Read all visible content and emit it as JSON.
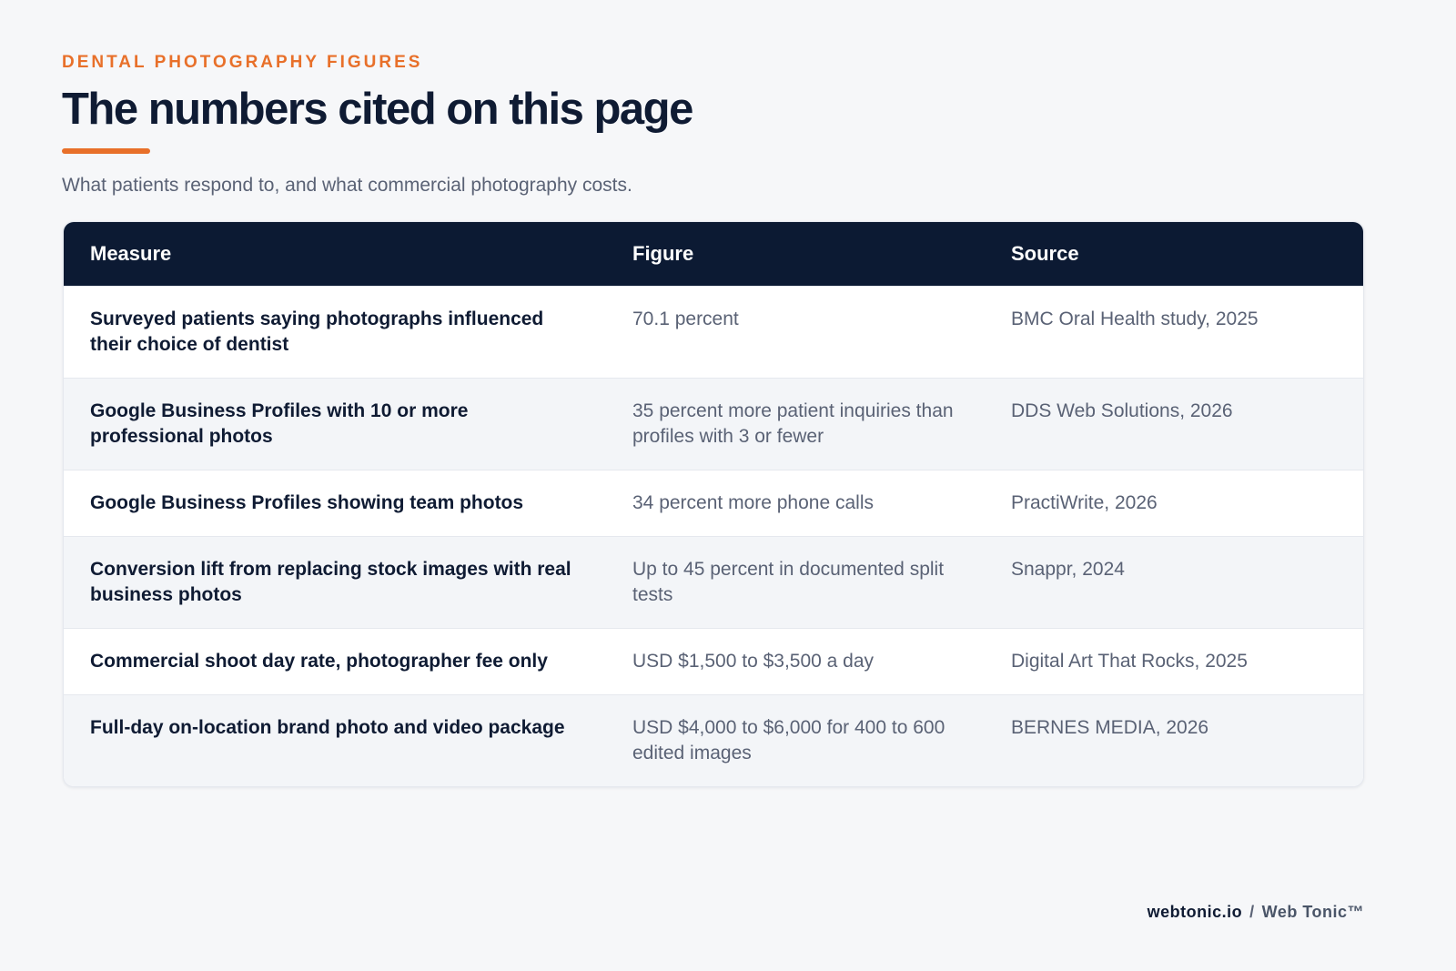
{
  "header": {
    "eyebrow": "DENTAL PHOTOGRAPHY FIGURES",
    "title": "The numbers cited on this page",
    "subtitle": "What patients respond to, and what commercial photography costs."
  },
  "table": {
    "columns": [
      "Measure",
      "Figure",
      "Source"
    ],
    "rows": [
      [
        "Surveyed patients saying photographs influenced their choice of dentist",
        "70.1 percent",
        "BMC Oral Health study, 2025"
      ],
      [
        "Google Business Profiles with 10 or more professional photos",
        "35 percent more patient inquiries than profiles with 3 or fewer",
        "DDS Web Solutions, 2026"
      ],
      [
        "Google Business Profiles showing team photos",
        "34 percent more phone calls",
        "PractiWrite, 2026"
      ],
      [
        "Conversion lift from replacing stock images with real business photos",
        "Up to 45 percent in documented split tests",
        "Snappr, 2024"
      ],
      [
        "Commercial shoot day rate, photographer fee only",
        "USD $1,500 to $3,500 a day",
        "Digital Art That Rocks, 2025"
      ],
      [
        "Full-day on-location brand photo and video package",
        "USD $4,000 to $6,000 for 400 to 600 edited images",
        "BERNES MEDIA, 2026"
      ]
    ]
  },
  "footer": {
    "site": "webtonic.io",
    "separator": "/",
    "brand": "Web Tonic™"
  }
}
